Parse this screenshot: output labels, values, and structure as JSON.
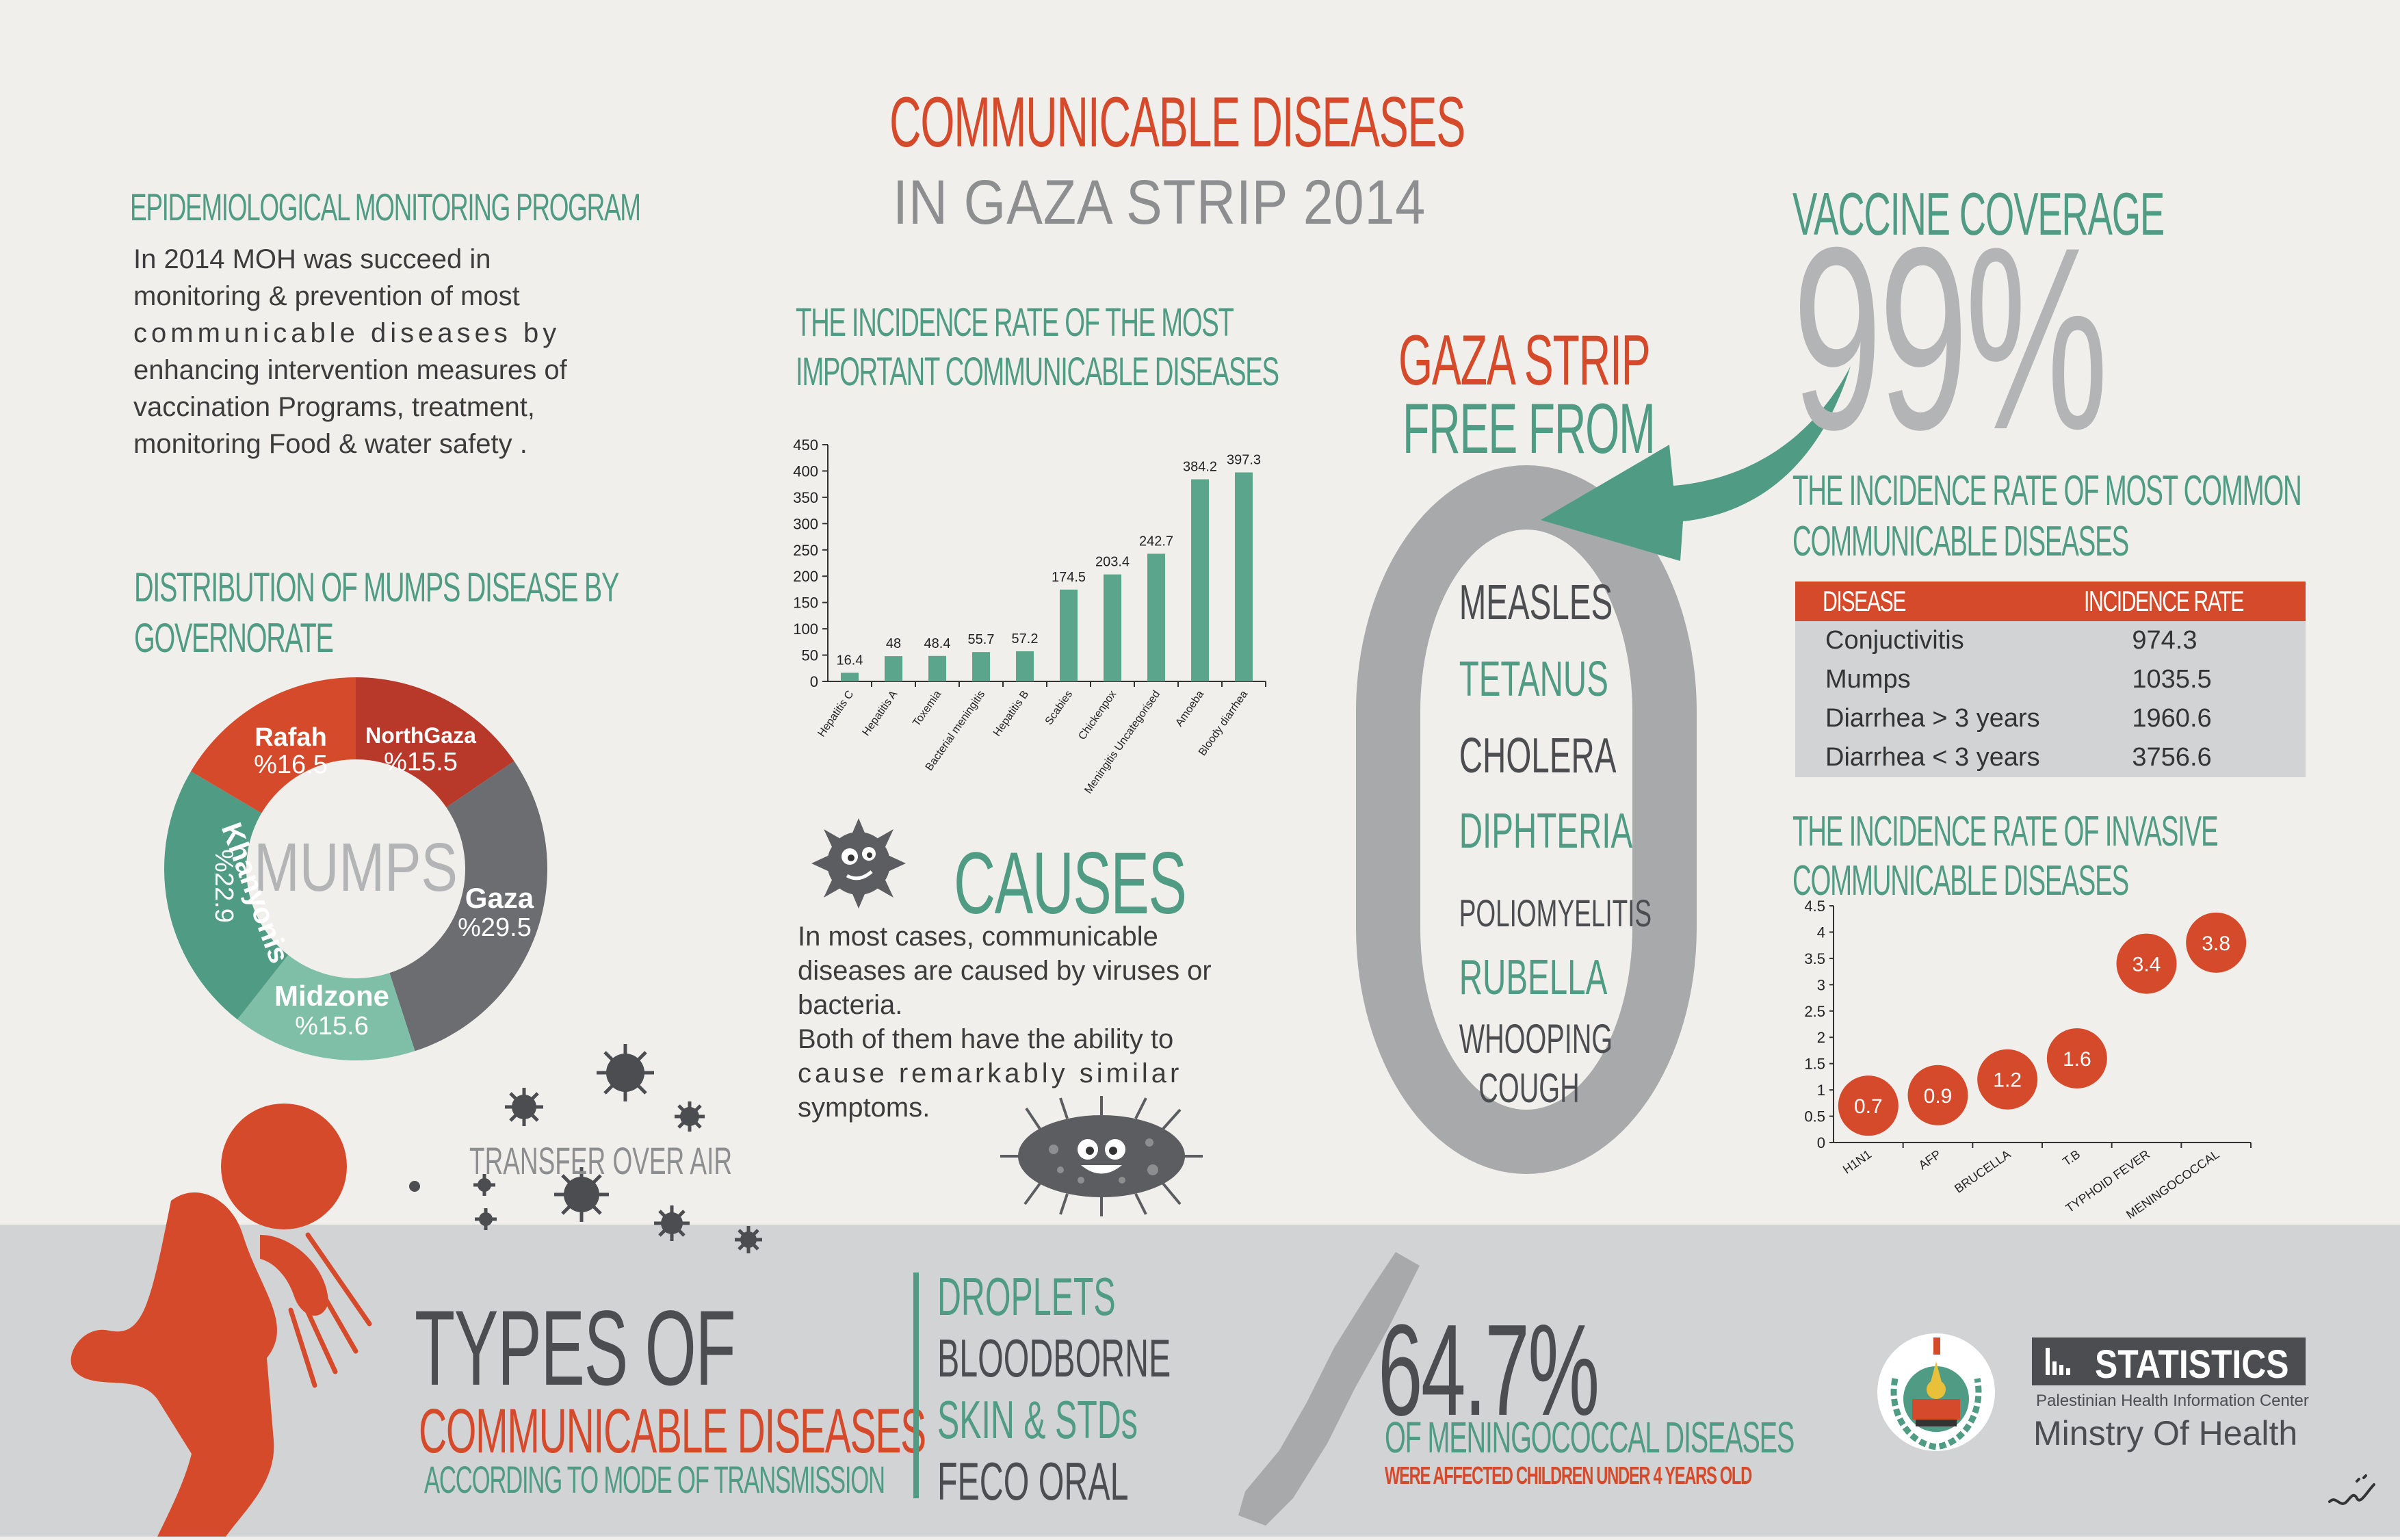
{
  "title": {
    "line1": "COMMUNICABLE DISEASES",
    "line2": "IN GAZA STRIP 2014"
  },
  "epi": {
    "heading": "EPIDEMIOLOGICAL MONITORING PROGRAM",
    "lines": [
      "In 2014 MOH was succeed in",
      "monitoring & prevention of most",
      "communicable diseases by",
      "enhancing intervention measures of",
      "vaccination Programs, treatment,",
      "monitoring Food & water safety ."
    ]
  },
  "mumps": {
    "heading_line1": "DISTRIBUTION OF MUMPS DISEASE BY",
    "heading_line2": "GOVERNORATE",
    "center": "MUMPS",
    "segments": [
      {
        "name": "Rafah",
        "value": "%16.5",
        "color": "#d64a2c"
      },
      {
        "name": "NorthGaza",
        "value": "%15.5",
        "color": "#b8392a"
      },
      {
        "name": "Gaza",
        "value": "%29.5",
        "color": "#6b6d70"
      },
      {
        "name": "Midzone",
        "value": "%15.6",
        "color": "#7fbfa7"
      },
      {
        "name": "Khanyonis",
        "value": "%22.9",
        "color": "#4f9b84"
      }
    ]
  },
  "incidence_chart": {
    "heading_line1": "THE INCIDENCE RATE OF THE MOST",
    "heading_line2": "IMPORTANT COMMUNICABLE DISEASES"
  },
  "causes": {
    "heading": "CAUSES",
    "lines": [
      "In most cases, communicable",
      "diseases are caused by viruses or",
      "bacteria.",
      "Both of them have the ability to",
      "cause remarkably similar",
      "symptoms."
    ]
  },
  "free_from": {
    "heading_line1": "GAZA STRIP",
    "heading_line2": "FREE FROM",
    "diseases": [
      "MEASLES",
      "TETANUS",
      "CHOLERA",
      "DIPHTERIA",
      "POLIOMYELITIS",
      "RUBELLA",
      "WHOOPING",
      "COUGH"
    ]
  },
  "vaccine": {
    "heading": "VACCINE COVERAGE",
    "value": "99%"
  },
  "common_table": {
    "heading_line1": "THE INCIDENCE RATE OF MOST COMMON",
    "heading_line2": "COMMUNICABLE DISEASES",
    "col1": "DISEASE",
    "col2": "INCIDENCE RATE",
    "rows": [
      {
        "disease": "Conjuctivitis",
        "rate": "974.3"
      },
      {
        "disease": "Mumps",
        "rate": "1035.5"
      },
      {
        "disease": "Diarrhea > 3 years",
        "rate": "1960.6"
      },
      {
        "disease": "Diarrhea <  3 years",
        "rate": "3756.6"
      }
    ]
  },
  "invasive": {
    "heading_line1": "THE INCIDENCE RATE OF INVASIVE",
    "heading_line2": "COMMUNICABLE DISEASES"
  },
  "transfer": {
    "label": "TRANSFER OVER AIR"
  },
  "types": {
    "line1": "TYPES OF",
    "line2": "COMMUNICABLE DISEASES",
    "line3": "ACCORDING TO MODE OF TRANSMISSION",
    "modes": [
      "DROPLETS",
      "BLOODBORNE",
      "SKIN & STDs",
      "FECO ORAL"
    ]
  },
  "meningo": {
    "value": "64.7%",
    "line1": "OF MENINGOCOCCAL DISEASES",
    "line2": "WERE AFFECTED CHILDREN UNDER 4 YEARS OLD"
  },
  "footer": {
    "statistics": "STATISTICS",
    "center": "Palestinian Health Information Center",
    "ministry": "Minstry Of Health"
  },
  "colors": {
    "orange": "#d64a2c",
    "green": "#4f9b84",
    "grey": "#8d8e90",
    "dark": "#4b4d50",
    "band": "#d2d3d5"
  },
  "chart_data": [
    {
      "type": "bar",
      "categories": [
        "Hepatitis C",
        "Hepatitis A",
        "Toxemia",
        "Bacterial meningitis",
        "Hepatitis B",
        "Scabies",
        "Chickenpox",
        "Meningitis Uncategorised",
        "Amoeba",
        "Bloody diarrhea"
      ],
      "values": [
        16.4,
        48,
        48.4,
        55.7,
        57.2,
        174.5,
        203.4,
        242.7,
        384.2,
        397.3
      ],
      "yticks": [
        0,
        50,
        100,
        150,
        200,
        250,
        300,
        350,
        400,
        450
      ],
      "ylim": [
        0,
        450
      ],
      "color": "#5aa58c"
    },
    {
      "type": "scatter",
      "categories": [
        "H1N1",
        "AFP",
        "BRUCELLA",
        "T.B",
        "TYPHOID FEVER",
        "MENINGOCOCCAL"
      ],
      "values": [
        0.7,
        0.9,
        1.2,
        1.6,
        3.4,
        3.8
      ],
      "yticks": [
        0,
        0.5,
        1,
        1.5,
        2,
        2.5,
        3,
        3.5,
        4,
        4.5
      ],
      "ylim": [
        0,
        4.5
      ],
      "color": "#d64a2c"
    }
  ]
}
